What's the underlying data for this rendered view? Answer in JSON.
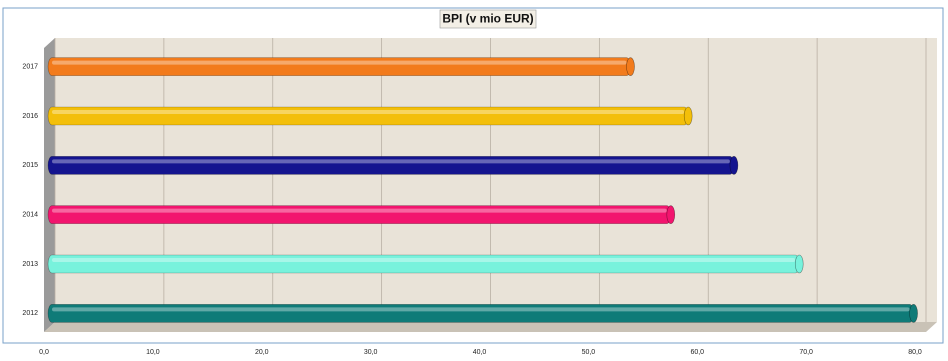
{
  "chart_data": {
    "type": "bar",
    "orientation": "horizontal",
    "title": "BPI (v mio EUR)",
    "categories": [
      "2017",
      "2016",
      "2015",
      "2014",
      "2013",
      "2012"
    ],
    "values": [
      53.5,
      58.8,
      63,
      57.2,
      69,
      79.5
    ],
    "colors": [
      "#f27b1c",
      "#f3bf0a",
      "#14148f",
      "#f2156e",
      "#78f2dc",
      "#0f7b78"
    ],
    "xlim": [
      0,
      80
    ],
    "xticks": [
      {
        "value": 0,
        "label": "0,0"
      },
      {
        "value": 10,
        "label": "10,0"
      },
      {
        "value": 20,
        "label": "20,0"
      },
      {
        "value": 30,
        "label": "30,0"
      },
      {
        "value": 40,
        "label": "40,0"
      },
      {
        "value": 50,
        "label": "50,0"
      },
      {
        "value": 60,
        "label": "60,0"
      },
      {
        "value": 70,
        "label": "70,0"
      },
      {
        "value": 80,
        "label": "80,0"
      }
    ],
    "grid": true
  }
}
